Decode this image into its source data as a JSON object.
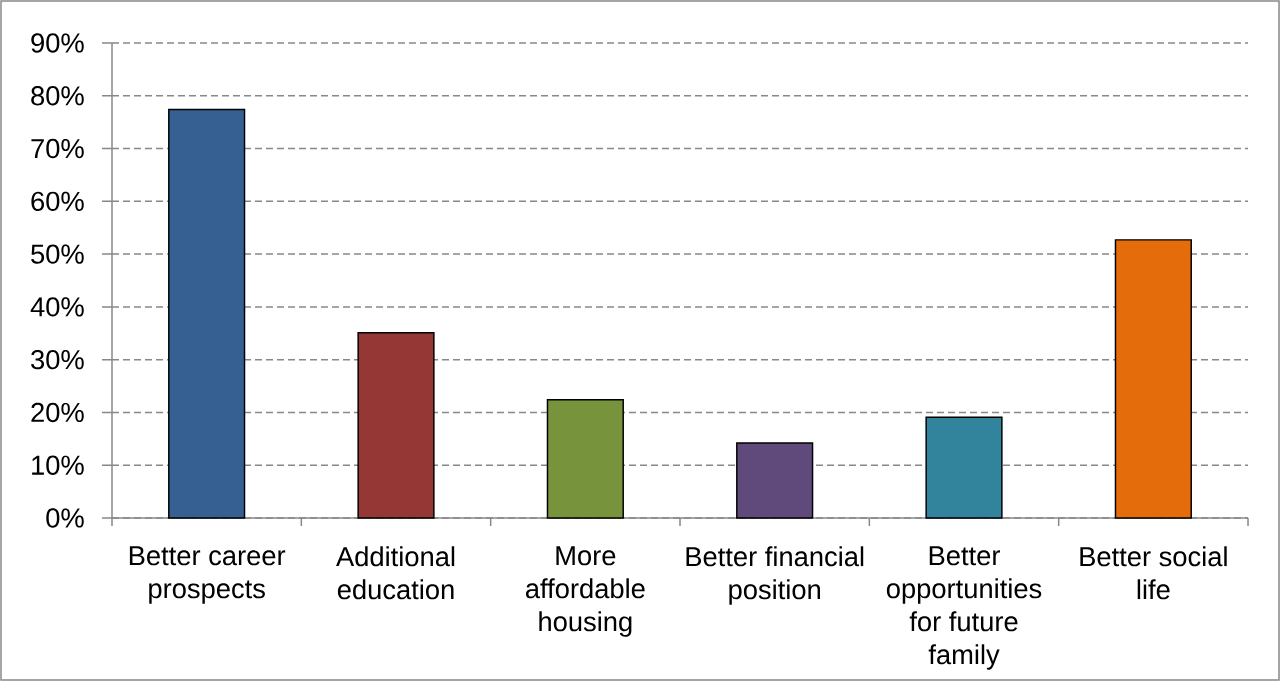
{
  "chart_data": {
    "type": "bar",
    "categories": [
      "Better career prospects",
      "Additional education",
      "More affordable housing",
      "Better financial position",
      "Better opportunities for future family",
      "Better social life"
    ],
    "values": [
      77.4,
      35.1,
      22.4,
      14.2,
      19.1,
      52.7
    ],
    "colors": [
      "#376092",
      "#953735",
      "#77933c",
      "#604a7b",
      "#31849b",
      "#e46c0a"
    ],
    "ylim": [
      0,
      90
    ],
    "yticks": [
      {
        "value": 0,
        "label": "0%"
      },
      {
        "value": 10,
        "label": "10%"
      },
      {
        "value": 20,
        "label": "20%"
      },
      {
        "value": 30,
        "label": "30%"
      },
      {
        "value": 40,
        "label": "40%"
      },
      {
        "value": 50,
        "label": "50%"
      },
      {
        "value": 60,
        "label": "60%"
      },
      {
        "value": 70,
        "label": "70%"
      },
      {
        "value": 80,
        "label": "80%"
      },
      {
        "value": 90,
        "label": "90%"
      }
    ],
    "grid": "y"
  }
}
